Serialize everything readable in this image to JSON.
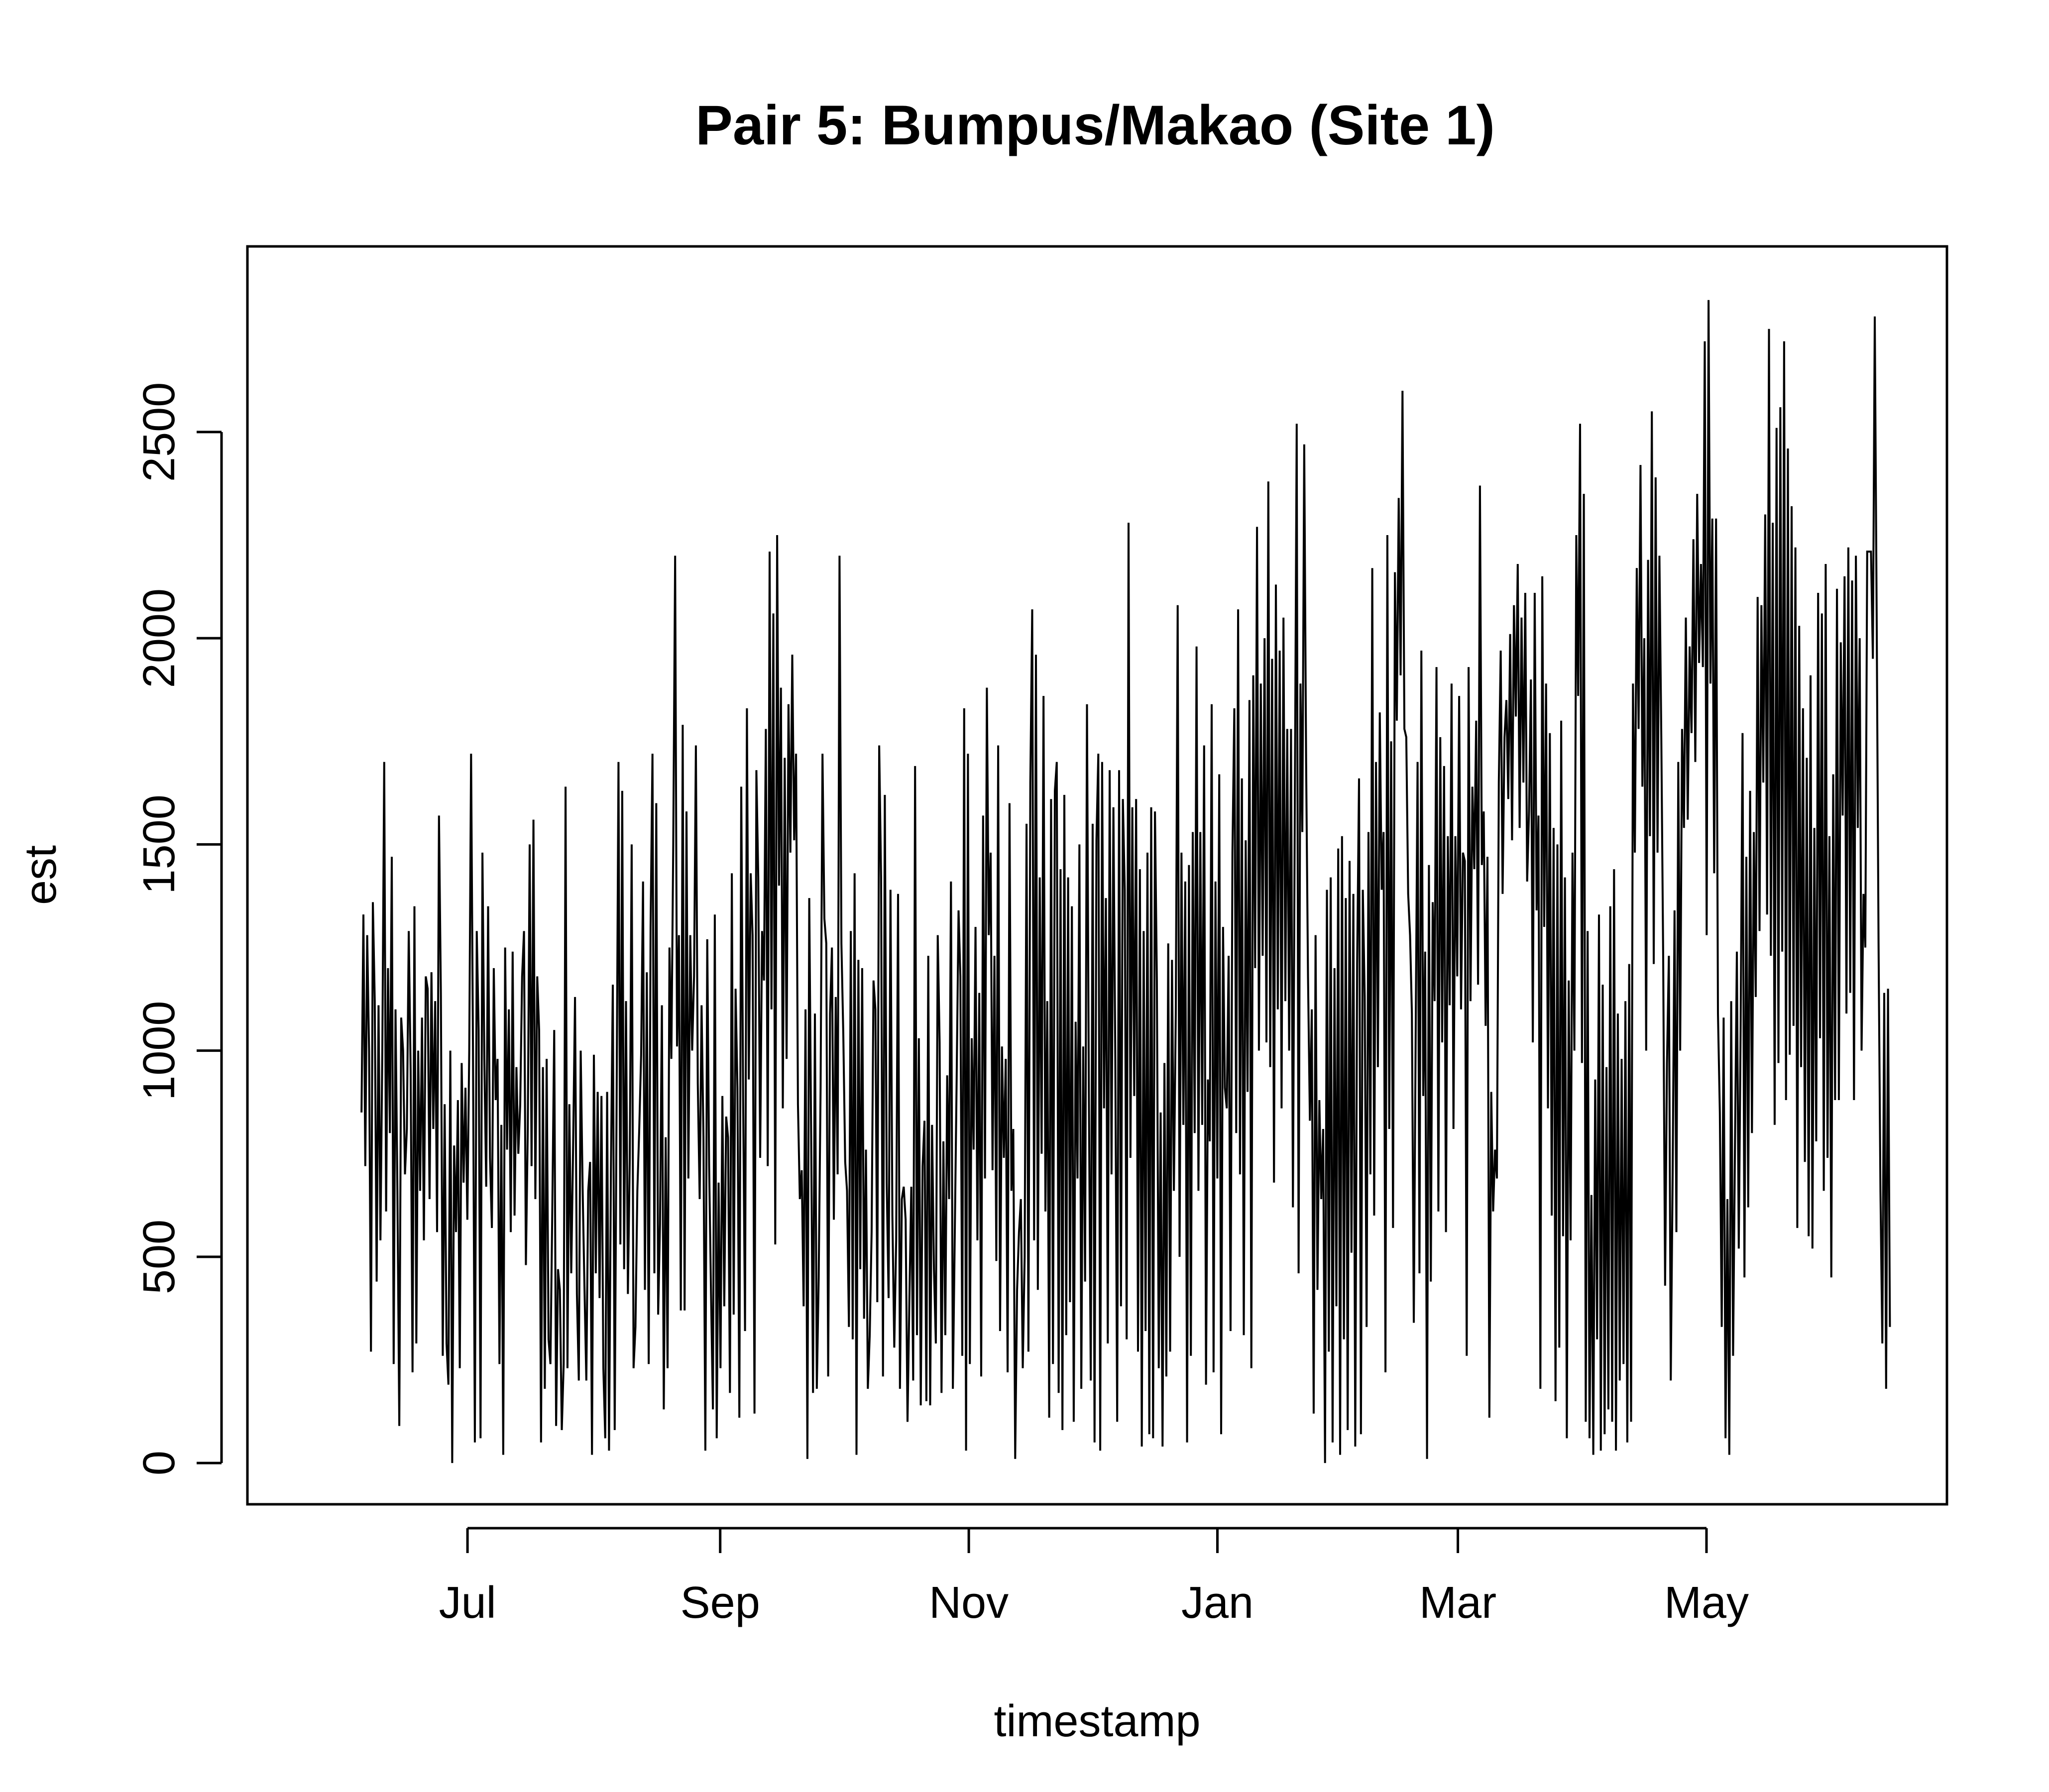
{
  "chart_data": {
    "type": "line",
    "title": "Pair 5: Bumpus/Makao (Site 1)",
    "xlabel": "timestamp",
    "ylabel": "est",
    "ylim": [
      -100,
      2950
    ],
    "y_ticks": [
      0,
      500,
      1000,
      1500,
      2000,
      2500
    ],
    "y_tick_labels": [
      "0",
      "500",
      "1000",
      "1500",
      "2000",
      "2500"
    ],
    "xlim": [
      "2017-05-08",
      "2018-06-29"
    ],
    "x_ticks": [
      "2017-07-01",
      "2017-09-01",
      "2017-11-01",
      "2018-01-01",
      "2018-03-01",
      "2018-05-01"
    ],
    "x_tick_labels": [
      "Jul",
      "Sep",
      "Nov",
      "Jan",
      "Mar",
      "May"
    ],
    "grid": false,
    "legend": "none",
    "line_color": "#000000",
    "series": [
      {
        "x_start": "2017-06-05",
        "x_end": "2018-06-15",
        "values": [
          850,
          1330,
          720,
          1280,
          1000,
          270,
          1360,
          1120,
          440,
          1110,
          540,
          1000,
          1700,
          610,
          1200,
          800,
          1470,
          240,
          1100,
          660,
          90,
          1080,
          1000,
          700,
          810,
          1290,
          950,
          220,
          1350,
          290,
          1000,
          660,
          1080,
          540,
          1180,
          1150,
          640,
          1190,
          810,
          1120,
          560,
          1570,
          1140,
          260,
          870,
          290,
          190,
          1000,
          0,
          770,
          560,
          880,
          230,
          970,
          680,
          910,
          590,
          1000,
          1720,
          1010,
          50,
          1290,
          1050,
          60,
          1480,
          980,
          670,
          1350,
          740,
          570,
          1200,
          880,
          980,
          240,
          820,
          20,
          1250,
          760,
          1100,
          560,
          1240,
          600,
          960,
          750,
          870,
          1180,
          1290,
          480,
          810,
          1500,
          720,
          1560,
          640,
          1180,
          1050,
          50,
          960,
          180,
          980,
          300,
          240,
          620,
          1050,
          90,
          470,
          420,
          80,
          240,
          1640,
          230,
          870,
          460,
          770,
          1130,
          410,
          200,
          1000,
          670,
          430,
          200,
          660,
          730,
          20,
          990,
          460,
          900,
          400,
          890,
          230,
          60,
          900,
          30,
          710,
          1160,
          80,
          870,
          1700,
          530,
          1630,
          470,
          1120,
          410,
          740,
          1500,
          230,
          330,
          660,
          810,
          990,
          1410,
          420,
          1190,
          240,
          1300,
          1720,
          460,
          1600,
          360,
          580,
          1110,
          130,
          790,
          230,
          1250,
          980,
          1500,
          2200,
          1010,
          1280,
          370,
          1790,
          370,
          1580,
          690,
          1280,
          1000,
          1180,
          1740,
          920,
          640,
          1110,
          790,
          30,
          1270,
          720,
          410,
          130,
          1330,
          60,
          680,
          230,
          890,
          380,
          840,
          790,
          170,
          1430,
          360,
          1150,
          910,
          110,
          1640,
          880,
          320,
          1830,
          930,
          1430,
          1280,
          120,
          1680,
          1420,
          740,
          1290,
          1170,
          1780,
          720,
          2210,
          1100,
          2060,
          530,
          2250,
          1400,
          1880,
          860,
          1710,
          980,
          1840,
          1480,
          1960,
          1510,
          1720,
          870,
          640,
          710,
          380,
          1100,
          10,
          1370,
          800,
          170,
          1090,
          180,
          450,
          910,
          1720,
          1320,
          1260,
          210,
          1090,
          1250,
          590,
          1130,
          700,
          2200,
          1260,
          1040,
          730,
          660,
          330,
          1290,
          300,
          1430,
          20,
          1220,
          470,
          1200,
          350,
          760,
          180,
          310,
          560,
          1170,
          1100,
          390,
          1740,
          1420,
          210,
          1620,
          680,
          400,
          1390,
          600,
          280,
          540,
          1380,
          180,
          640,
          670,
          590,
          100,
          400,
          670,
          200,
          1690,
          310,
          1030,
          140,
          720,
          830,
          150,
          1230,
          140,
          820,
          470,
          290,
          1280,
          1020,
          170,
          780,
          310,
          940,
          640,
          1410,
          180,
          550,
          930,
          1340,
          1180,
          260,
          1830,
          30,
          1720,
          240,
          1030,
          760,
          1300,
          540,
          1140,
          210,
          1570,
          690,
          1880,
          1280,
          1480,
          710,
          1230,
          490,
          1740,
          320,
          1010,
          740,
          980,
          220,
          1600,
          660,
          810,
          10,
          420,
          560,
          640,
          230,
          500,
          1550,
          270,
          1650,
          2070,
          540,
          1960,
          420,
          1420,
          750,
          1860,
          610,
          1120,
          110,
          1610,
          240,
          1630,
          1700,
          170,
          1440,
          80,
          1620,
          310,
          1420,
          390,
          1350,
          100,
          1070,
          690,
          1500,
          180,
          1010,
          440,
          1840,
          900,
          200,
          1550,
          50,
          1510,
          1720,
          30,
          1700,
          860,
          1370,
          290,
          1680,
          700,
          1590,
          980,
          100,
          1680,
          380,
          1610,
          1390,
          300,
          2280,
          740,
          1590,
          890,
          1610,
          270,
          1440,
          40,
          1290,
          320,
          1480,
          70,
          1590,
          60,
          1580,
          1170,
          230,
          850,
          40,
          970,
          210,
          1260,
          270,
          1220,
          660,
          1090,
          2080,
          500,
          1480,
          820,
          1410,
          50,
          1450,
          260,
          1530,
          800,
          1980,
          660,
          1530,
          820,
          1740,
          190,
          930,
          780,
          1840,
          220,
          1410,
          690,
          1670,
          70,
          1300,
          910,
          860,
          1230,
          320,
          1480,
          1830,
          800,
          2070,
          700,
          1660,
          310,
          1510,
          900,
          1850,
          230,
          1910,
          1200,
          2270,
          1000,
          1890,
          1230,
          2000,
          1020,
          2380,
          960,
          1950,
          680,
          2130,
          1100,
          1970,
          860,
          2050,
          1120,
          1780,
          1000,
          1780,
          620,
          1590,
          2520,
          460,
          1890,
          1530,
          2470,
          1700,
          1180,
          830,
          1100,
          120,
          1280,
          420,
          880,
          640,
          810,
          0,
          1390,
          270,
          1420,
          50,
          1200,
          380,
          1490,
          20,
          1520,
          300,
          1370,
          80,
          1460,
          510,
          1380,
          40,
          1210,
          1660,
          70,
          1390,
          1130,
          330,
          1530,
          700,
          2170,
          600,
          1700,
          960,
          1820,
          1390,
          1530,
          220,
          2250,
          810,
          1750,
          570,
          2160,
          1800,
          2340,
          1910,
          2600,
          1780,
          1760,
          1380,
          1280,
          1090,
          340,
          1040,
          1700,
          460,
          1970,
          890,
          1240,
          10,
          1450,
          440,
          1360,
          1120,
          1930,
          610,
          1760,
          1020,
          1690,
          560,
          1520,
          1110,
          1890,
          810,
          1520,
          1180,
          1860,
          1100,
          1480,
          1460,
          260,
          1930,
          1120,
          1640,
          1440,
          1800,
          1160,
          2370,
          1450,
          1580,
          1060,
          1470,
          110,
          900,
          610,
          760,
          690,
          1650,
          1970,
          1380,
          1760,
          1850,
          1610,
          2010,
          1510,
          2080,
          1810,
          2180,
          1540,
          2050,
          1650,
          2110,
          1410,
          1580,
          1900,
          1020,
          2110,
          1340,
          1570,
          180,
          2150,
          1300,
          1890,
          860,
          1770,
          600,
          1540,
          150,
          1500,
          280,
          1800,
          550,
          1420,
          60,
          1170,
          540,
          1480,
          1000,
          2250,
          1860,
          2520,
          970,
          2350,
          100,
          1290,
          60,
          650,
          20,
          930,
          300,
          1330,
          30,
          1160,
          70,
          960,
          130,
          1350,
          100,
          1440,
          30,
          1090,
          200,
          980,
          240,
          1120,
          50,
          1210,
          100,
          1890,
          1480,
          2170,
          1780,
          2420,
          1640,
          2000,
          1000,
          2190,
          1520,
          2550,
          1210,
          2390,
          1480,
          2200,
          1760,
          1220,
          430,
          970,
          1230,
          200,
          700,
          1340,
          560,
          1700,
          1000,
          1780,
          1540,
          2050,
          1560,
          1980,
          1770,
          2240,
          1700,
          2350,
          1940,
          2180,
          1930,
          2720,
          1280,
          2820,
          1890,
          2290,
          1430,
          2290,
          1090,
          850,
          330,
          1080,
          60,
          640,
          20,
          1120,
          260,
          770,
          1240,
          520,
          1060,
          1770,
          450,
          1470,
          620,
          1630,
          800,
          1530,
          1130,
          2100,
          1290,
          2080,
          1650,
          2300,
          1330,
          2750,
          1230,
          2280,
          820,
          2510,
          970,
          2560,
          1240,
          2720,
          880,
          2460,
          990,
          2320,
          1060,
          2220,
          570,
          2030,
          960,
          1830,
          730,
          1710,
          550,
          1910,
          520,
          1540,
          780,
          2110,
          1030,
          2060,
          660,
          2180,
          740,
          1520,
          450,
          1670,
          880,
          2120,
          880,
          1990,
          1570,
          2150,
          1090,
          2220,
          1140,
          2140,
          880,
          2200,
          1540,
          2000,
          1000,
          1380,
          1250,
          2210,
          2210,
          2210,
          1950,
          2780,
          2060,
          1260,
          660,
          290,
          1140,
          180,
          1150,
          330
        ]
      }
    ]
  }
}
